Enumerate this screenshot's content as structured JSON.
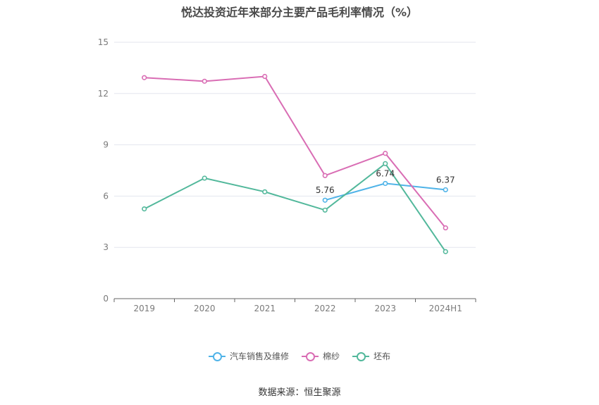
{
  "title": "悦达投资近年来部分主要产品毛利率情况（%）",
  "source": "数据来源：恒生聚源",
  "chart_data": {
    "type": "line",
    "categories": [
      "2019",
      "2020",
      "2021",
      "2022",
      "2023",
      "2024H1"
    ],
    "ylim": [
      0,
      15
    ],
    "yticks": [
      0,
      3,
      6,
      9,
      12,
      15
    ],
    "grid": true,
    "legend_position": "bottom",
    "series": [
      {
        "name": "汽车销售及维修",
        "color": "#4fb3e8",
        "values": [
          null,
          null,
          null,
          5.76,
          6.74,
          6.37
        ],
        "labels": [
          null,
          null,
          null,
          "5.76",
          "6.74",
          "6.37"
        ]
      },
      {
        "name": "棉纱",
        "color": "#d96db4",
        "values": [
          12.93,
          12.72,
          13.0,
          7.2,
          8.5,
          4.14
        ],
        "labels": [
          null,
          null,
          null,
          null,
          null,
          null
        ]
      },
      {
        "name": "坯布",
        "color": "#52b89b",
        "values": [
          5.25,
          7.05,
          6.25,
          5.18,
          7.9,
          2.75
        ],
        "labels": [
          null,
          null,
          null,
          null,
          null,
          null
        ]
      }
    ]
  }
}
